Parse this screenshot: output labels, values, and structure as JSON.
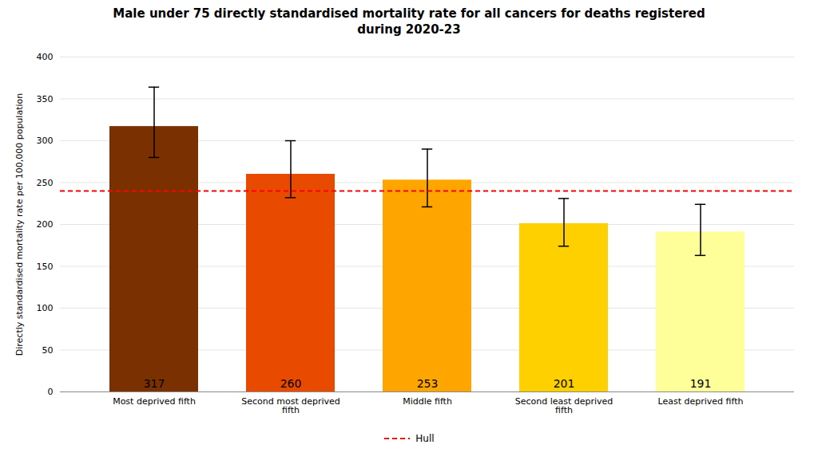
{
  "chart_data": {
    "type": "bar",
    "title": "Male under 75 directly standardised mortality rate for all cancers for deaths registered\nduring 2020-23",
    "ylabel": "Directly standardised mortality rate per 100,000 population",
    "categories": [
      "Most deprived fifth",
      "Second most deprived\nfifth",
      "Middle fifth",
      "Second least deprived\nfifth",
      "Least deprived fifth"
    ],
    "values": [
      317,
      260,
      253,
      201,
      191
    ],
    "colors": [
      "#7B3000",
      "#E84A00",
      "#FFA500",
      "#FFD000",
      "#FFFF99"
    ],
    "error_lower": [
      37,
      28,
      32,
      27,
      28
    ],
    "error_upper": [
      47,
      40,
      37,
      30,
      33
    ],
    "hlines": [
      {
        "name": "Hull",
        "value": 240,
        "color": "#FF0000",
        "line_style": "dashed"
      }
    ],
    "ylim": [
      0,
      400
    ],
    "yticks": [
      0,
      50,
      100,
      150,
      200,
      250,
      300,
      350,
      400
    ],
    "grid": true,
    "data_labels": true,
    "legend": "bottom"
  }
}
